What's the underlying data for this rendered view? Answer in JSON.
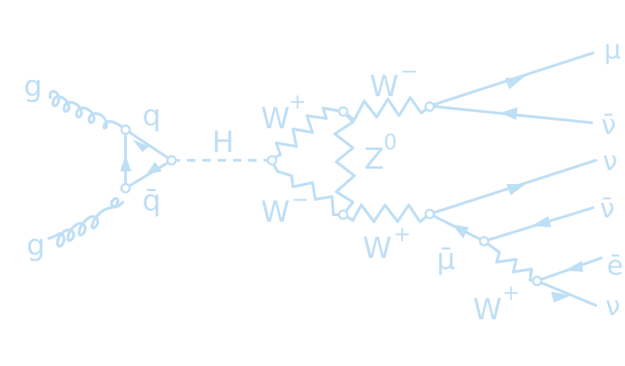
{
  "colors": {
    "stroke": "#bfdff5",
    "background": "#ffffff"
  },
  "labels": {
    "gluon_top": "g",
    "gluon_bottom": "g",
    "quark": "q",
    "antiquark": "q̄",
    "higgs": "H",
    "w_plus_left": "W",
    "w_plus_left_sup": "+",
    "w_minus_left": "W",
    "w_minus_left_sup": "−",
    "z0": "Z",
    "z0_sup": "0",
    "w_minus_top": "W",
    "w_minus_top_sup": "−",
    "w_plus_bottom": "W",
    "w_plus_bottom_sup": "+",
    "anti_muon": "μ̄",
    "w_plus_small": "W",
    "w_plus_small_sup": "+",
    "muon": "μ",
    "anti_nu_1": "ν̄",
    "nu_1": "ν",
    "anti_nu_2": "ν̄",
    "positron": "ē",
    "nu_2": "ν"
  }
}
